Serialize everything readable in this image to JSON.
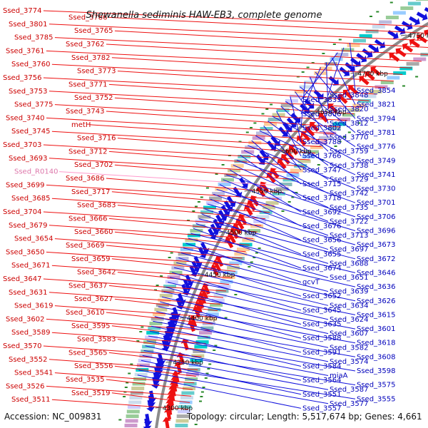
{
  "title": "Shewanella sediminis HAW-EB3, complete genome",
  "footer": {
    "accession": "Accession: NC_009831",
    "summary": "Topology: circular; Length: 5,517,674 bp; Genes: 4,661"
  },
  "colors": {
    "forward": "#ee1111",
    "reverse": "#1111dd",
    "rna": "#ff99cc",
    "backbone": "#8c8c8c",
    "gc_tick": "#2a8a2a"
  },
  "kbp_marks": [
    "4750 kbp",
    "4700 kbp",
    "4650 kbp",
    "4600 kbp",
    "4550 kbp",
    "4500 kbp",
    "4450 kbp",
    "4400 kbp",
    "4350 kbp",
    "4300 kbp"
  ],
  "left_labels": [
    "Ssed_3774",
    "Ssed_3786",
    "Ssed_3801",
    "Ssed_3765",
    "Ssed_3785",
    "Ssed_3762",
    "Ssed_3761",
    "Ssed_3782",
    "Ssed_3760",
    "Ssed_3773",
    "Ssed_3756",
    "Ssed_3771",
    "Ssed_3753",
    "Ssed_3752",
    "Ssed_3775",
    "Ssed_3743",
    "Ssed_3740",
    "metH",
    "Ssed_3745",
    "Ssed_3716",
    "Ssed_3703",
    "Ssed_3712",
    "Ssed_3693",
    "Ssed_3702",
    "Ssed_R0140",
    "Ssed_3686",
    "Ssed_3699",
    "Ssed_3717",
    "Ssed_3685",
    "Ssed_3683",
    "Ssed_3704",
    "Ssed_3666",
    "Ssed_3679",
    "Ssed_3660",
    "Ssed_3654",
    "Ssed_3669",
    "Ssed_3650",
    "Ssed_3659",
    "Ssed_3671",
    "Ssed_3642",
    "Ssed_3647",
    "Ssed_3637",
    "Ssed_3631",
    "Ssed_3627",
    "Ssed_3619",
    "Ssed_3610",
    "Ssed_3602",
    "Ssed_3595",
    "Ssed_3589",
    "Ssed_3583",
    "Ssed_3570",
    "Ssed_3565",
    "Ssed_3552",
    "Ssed_3556",
    "Ssed_3541",
    "Ssed_3535",
    "Ssed_3526",
    "Ssed_3519",
    "Ssed_3511"
  ],
  "right_labels": [
    "Ssed_3854",
    "Ssed_3848",
    "Ssed_3833",
    "Ssed_3821",
    "Ssed_3820",
    "Ssed_3806",
    "Ssed_3794",
    "Ssed_3812",
    "Ssed_3802",
    "Ssed_3781",
    "Ssed_3770",
    "Ssed_3788",
    "Ssed_3776",
    "Ssed_3759",
    "Ssed_3766",
    "Ssed_3749",
    "Ssed_3738",
    "Ssed_3747",
    "Ssed_3741",
    "Ssed_3729",
    "Ssed_3715",
    "Ssed_3730",
    "Ssed_3742",
    "Ssed_3718",
    "Ssed_3701",
    "Ssed_3735",
    "Ssed_3692",
    "Ssed_3706",
    "Ssed_3722",
    "Ssed_3676",
    "Ssed_3696",
    "Ssed_3713",
    "Ssed_3656",
    "Ssed_3673",
    "Ssed_3697",
    "Ssed_3655",
    "Ssed_3672",
    "Ssed_3688",
    "Ssed_3674",
    "Ssed_3646",
    "Ssed_3651",
    "gcvT",
    "Ssed_3636",
    "Ssed_3639",
    "Ssed_3652",
    "Ssed_3626",
    "Ssed_3634",
    "Ssed_3645",
    "Ssed_3615",
    "Ssed_3624",
    "Ssed_3635",
    "Ssed_3601",
    "Ssed_3607",
    "Ssed_3588",
    "Ssed_3618",
    "Ssed_3582",
    "Ssed_3591",
    "Ssed_3608",
    "Ssed_3574",
    "Ssed_3584",
    "Ssed_3598",
    "miaA",
    "Ssed_3564",
    "Ssed_3575",
    "Ssed_3587",
    "Ssed_3551",
    "Ssed_3555",
    "Ssed_3577",
    "Ssed_3557"
  ]
}
